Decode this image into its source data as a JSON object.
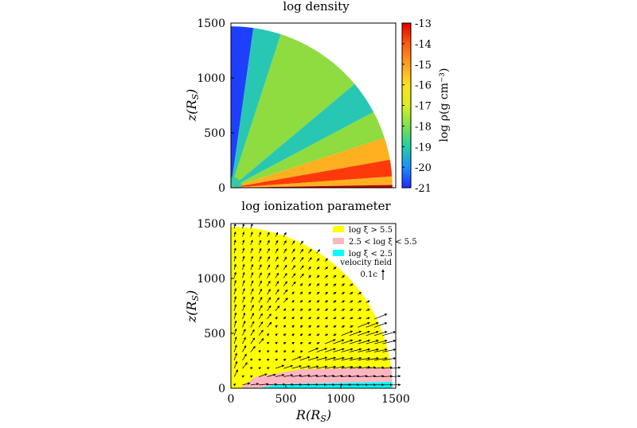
{
  "chart_data": [
    {
      "type": "heatmap",
      "title": "log density",
      "ylabel": "z(R_S)",
      "xlim": [
        0,
        1500
      ],
      "ylim": [
        0,
        1500
      ],
      "yticks": [
        "0",
        "500",
        "1000",
        "1500"
      ],
      "colorbar": {
        "label": "log ρ(g cm⁻³)",
        "range": [
          -21,
          -13
        ],
        "ticks": [
          "-13",
          "-14",
          "-15",
          "-16",
          "-17",
          "-18",
          "-19",
          "-20",
          "-21"
        ],
        "colors": [
          "#1c2cff",
          "#1e8fff",
          "#20d0a0",
          "#7ee050",
          "#d6f020",
          "#ffe020",
          "#ffa020",
          "#ff5a10",
          "#e00000"
        ]
      },
      "domain_radius": 1470,
      "colors": {
        "polar_low": "#1f3fff",
        "mid_low": "#28c7b3",
        "mid": "#8edc3f",
        "high": "#ffb020",
        "disk": "#ff3a0a",
        "plane": "#b80000"
      }
    },
    {
      "type": "heatmap",
      "title": "log ionization parameter",
      "xlabel": "R(R_S)",
      "ylabel": "z(R_S)",
      "xlim": [
        0,
        1500
      ],
      "ylim": [
        0,
        1500
      ],
      "xticks": [
        "0",
        "500",
        "1000",
        "1500"
      ],
      "yticks": [
        "0",
        "500",
        "1000",
        "1500"
      ],
      "domain_radius": 1470,
      "legend": [
        {
          "label": "log ξ > 5.5",
          "color": "#ffff00"
        },
        {
          "label": "2.5 < log ξ < 5.5",
          "color": "#ffb6c1"
        },
        {
          "label": "log ξ < 2.5",
          "color": "#00ffff"
        }
      ],
      "note": {
        "title": "velocity field",
        "scale": "0.1c"
      }
    }
  ]
}
